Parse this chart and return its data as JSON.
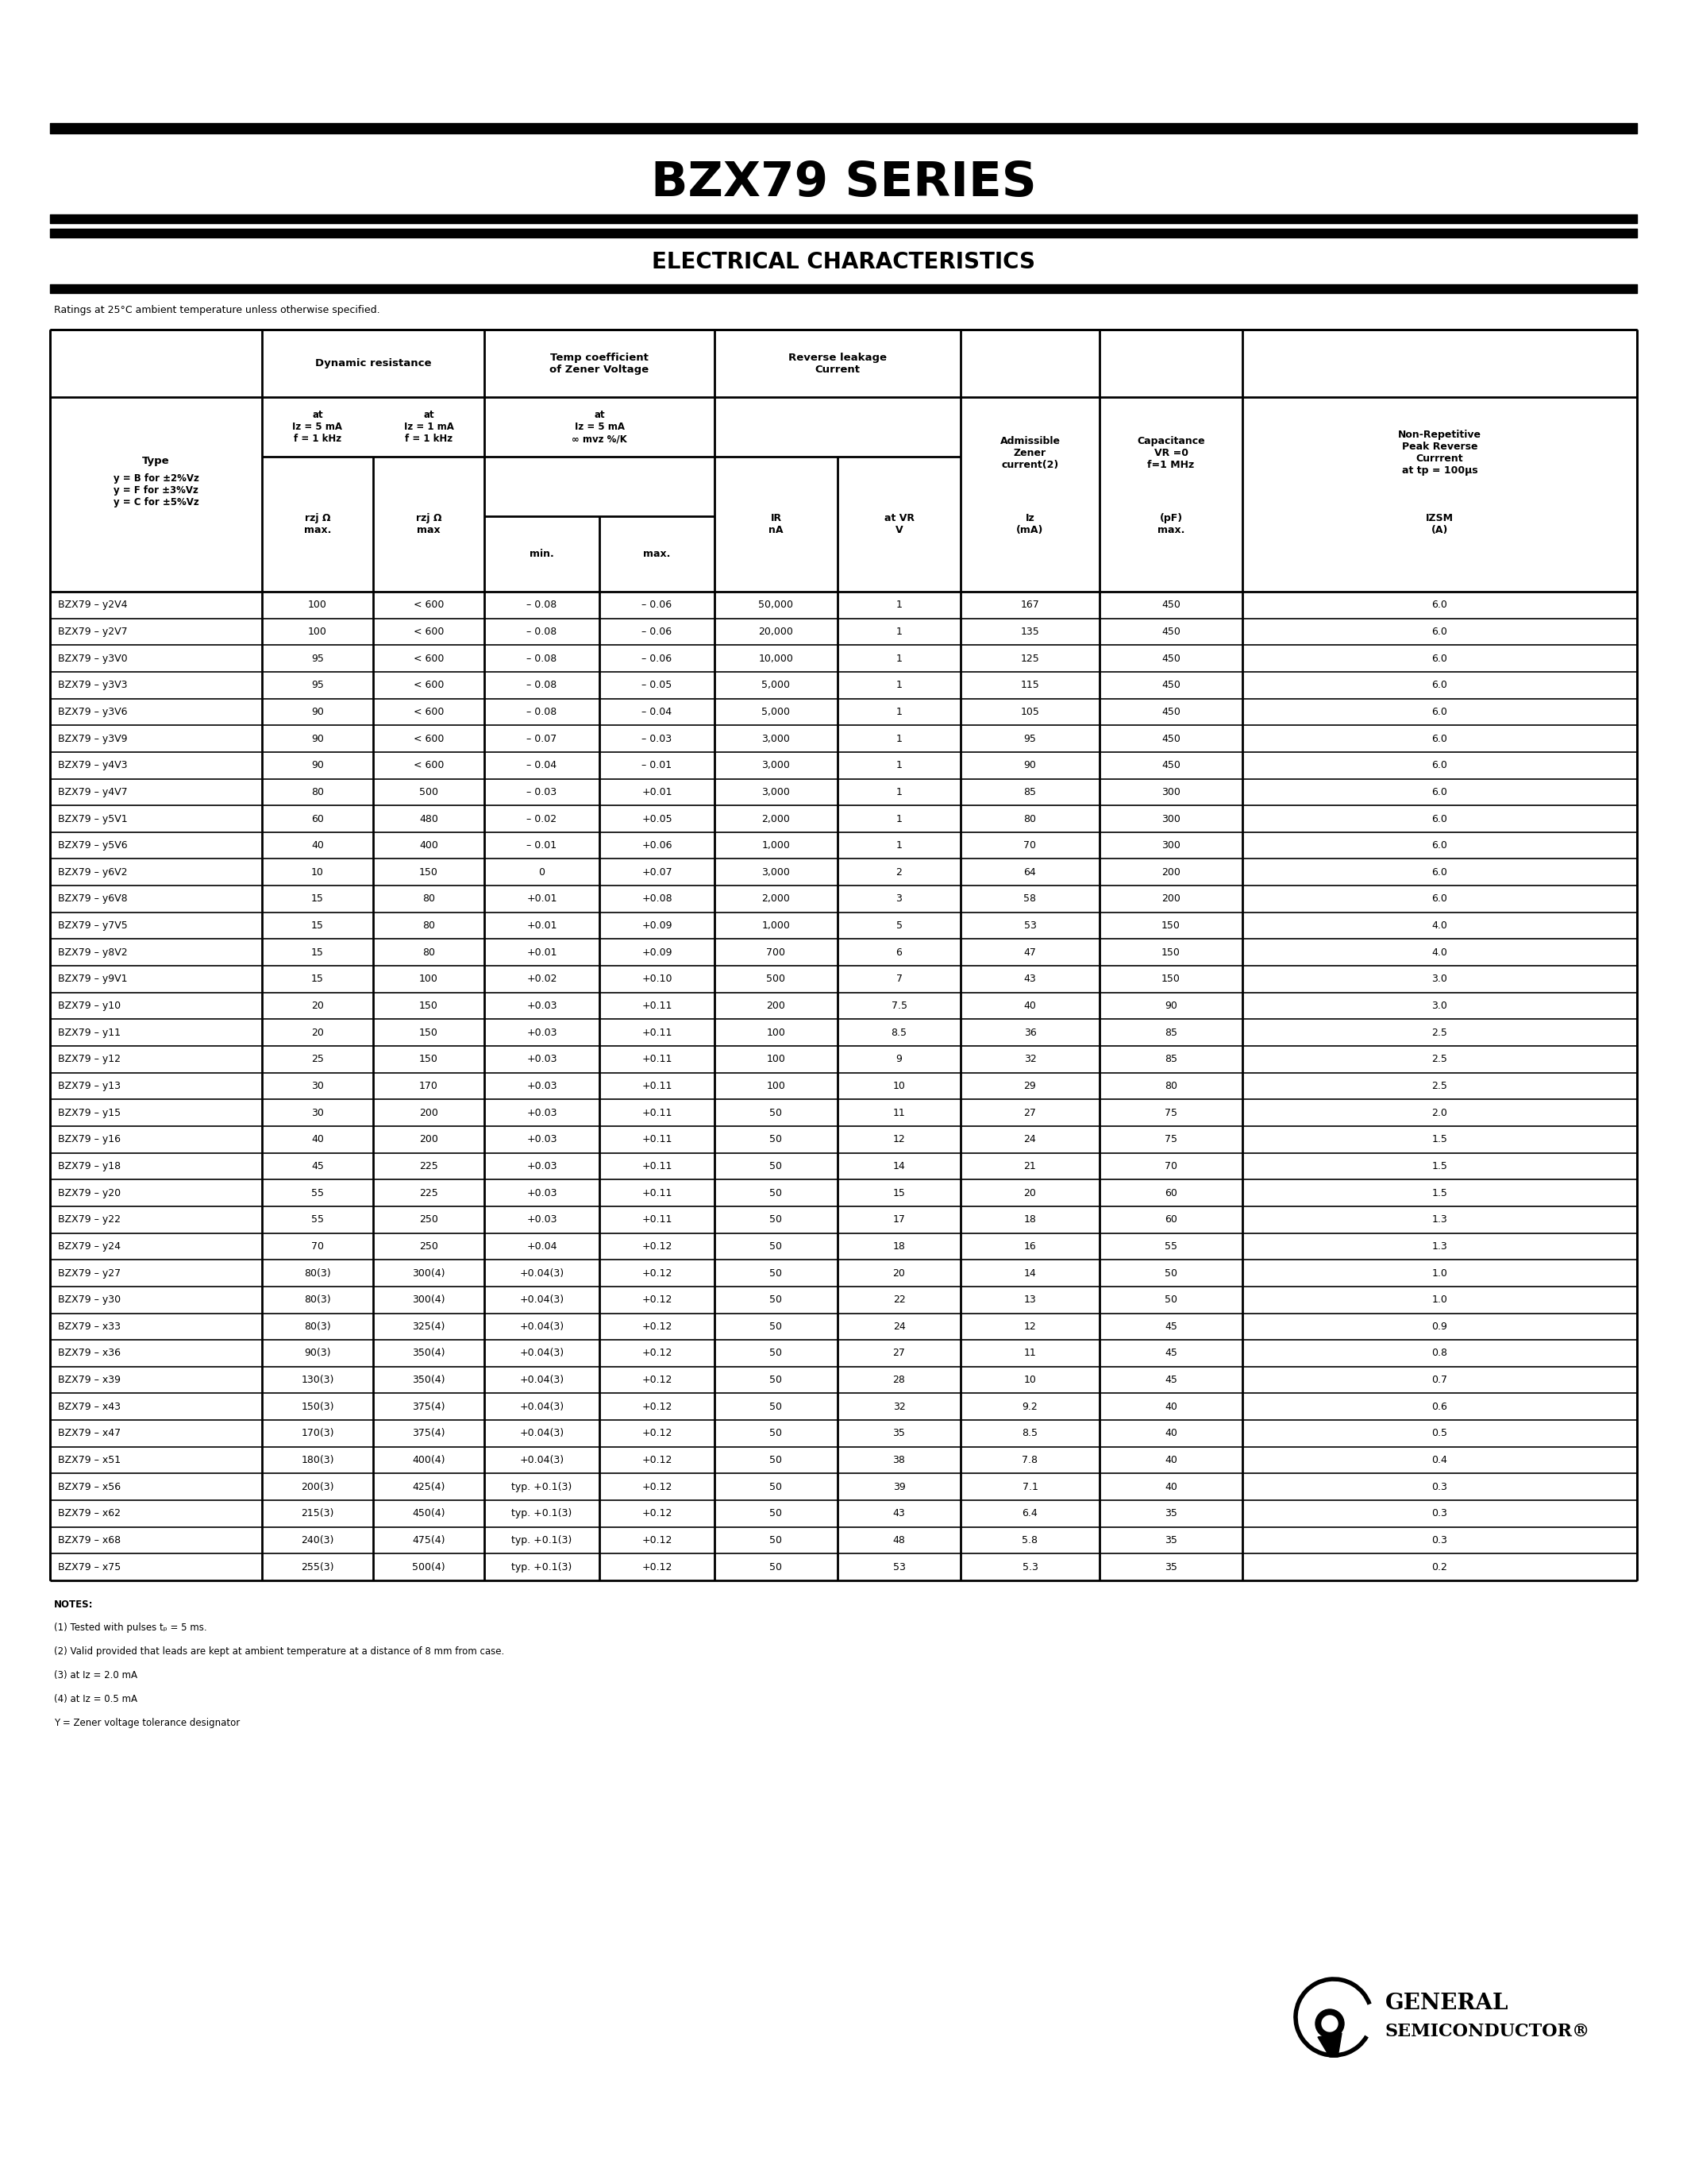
{
  "title": "BZX79 SERIES",
  "subtitle": "ELECTRICAL CHARACTERISTICS",
  "ratings_text": "Ratings at 25°C ambient temperature unless otherwise specified.",
  "table_data": [
    [
      "BZX79 – y2V4",
      "100",
      "< 600",
      "– 0.08",
      "– 0.06",
      "50,000",
      "1",
      "167",
      "450",
      "6.0"
    ],
    [
      "BZX79 – y2V7",
      "100",
      "< 600",
      "– 0.08",
      "– 0.06",
      "20,000",
      "1",
      "135",
      "450",
      "6.0"
    ],
    [
      "BZX79 – y3V0",
      "95",
      "< 600",
      "– 0.08",
      "– 0.06",
      "10,000",
      "1",
      "125",
      "450",
      "6.0"
    ],
    [
      "BZX79 – y3V3",
      "95",
      "< 600",
      "– 0.08",
      "– 0.05",
      "5,000",
      "1",
      "115",
      "450",
      "6.0"
    ],
    [
      "BZX79 – y3V6",
      "90",
      "< 600",
      "– 0.08",
      "– 0.04",
      "5,000",
      "1",
      "105",
      "450",
      "6.0"
    ],
    [
      "BZX79 – y3V9",
      "90",
      "< 600",
      "– 0.07",
      "– 0.03",
      "3,000",
      "1",
      "95",
      "450",
      "6.0"
    ],
    [
      "BZX79 – y4V3",
      "90",
      "< 600",
      "– 0.04",
      "– 0.01",
      "3,000",
      "1",
      "90",
      "450",
      "6.0"
    ],
    [
      "BZX79 – y4V7",
      "80",
      "500",
      "– 0.03",
      "+0.01",
      "3,000",
      "1",
      "85",
      "300",
      "6.0"
    ],
    [
      "BZX79 – y5V1",
      "60",
      "480",
      "– 0.02",
      "+0.05",
      "2,000",
      "1",
      "80",
      "300",
      "6.0"
    ],
    [
      "BZX79 – y5V6",
      "40",
      "400",
      "– 0.01",
      "+0.06",
      "1,000",
      "1",
      "70",
      "300",
      "6.0"
    ],
    [
      "BZX79 – y6V2",
      "10",
      "150",
      "0",
      "+0.07",
      "3,000",
      "2",
      "64",
      "200",
      "6.0"
    ],
    [
      "BZX79 – y6V8",
      "15",
      "80",
      "+0.01",
      "+0.08",
      "2,000",
      "3",
      "58",
      "200",
      "6.0"
    ],
    [
      "BZX79 – y7V5",
      "15",
      "80",
      "+0.01",
      "+0.09",
      "1,000",
      "5",
      "53",
      "150",
      "4.0"
    ],
    [
      "BZX79 – y8V2",
      "15",
      "80",
      "+0.01",
      "+0.09",
      "700",
      "6",
      "47",
      "150",
      "4.0"
    ],
    [
      "BZX79 – y9V1",
      "15",
      "100",
      "+0.02",
      "+0.10",
      "500",
      "7",
      "43",
      "150",
      "3.0"
    ],
    [
      "BZX79 – y10",
      "20",
      "150",
      "+0.03",
      "+0.11",
      "200",
      "7.5",
      "40",
      "90",
      "3.0"
    ],
    [
      "BZX79 – y11",
      "20",
      "150",
      "+0.03",
      "+0.11",
      "100",
      "8.5",
      "36",
      "85",
      "2.5"
    ],
    [
      "BZX79 – y12",
      "25",
      "150",
      "+0.03",
      "+0.11",
      "100",
      "9",
      "32",
      "85",
      "2.5"
    ],
    [
      "BZX79 – y13",
      "30",
      "170",
      "+0.03",
      "+0.11",
      "100",
      "10",
      "29",
      "80",
      "2.5"
    ],
    [
      "BZX79 – y15",
      "30",
      "200",
      "+0.03",
      "+0.11",
      "50",
      "11",
      "27",
      "75",
      "2.0"
    ],
    [
      "BZX79 – y16",
      "40",
      "200",
      "+0.03",
      "+0.11",
      "50",
      "12",
      "24",
      "75",
      "1.5"
    ],
    [
      "BZX79 – y18",
      "45",
      "225",
      "+0.03",
      "+0.11",
      "50",
      "14",
      "21",
      "70",
      "1.5"
    ],
    [
      "BZX79 – y20",
      "55",
      "225",
      "+0.03",
      "+0.11",
      "50",
      "15",
      "20",
      "60",
      "1.5"
    ],
    [
      "BZX79 – y22",
      "55",
      "250",
      "+0.03",
      "+0.11",
      "50",
      "17",
      "18",
      "60",
      "1.3"
    ],
    [
      "BZX79 – y24",
      "70",
      "250",
      "+0.04",
      "+0.12",
      "50",
      "18",
      "16",
      "55",
      "1.3"
    ],
    [
      "BZX79 – y27",
      "80(3)",
      "300(4)",
      "+0.04(3)",
      "+0.12",
      "50",
      "20",
      "14",
      "50",
      "1.0"
    ],
    [
      "BZX79 – y30",
      "80(3)",
      "300(4)",
      "+0.04(3)",
      "+0.12",
      "50",
      "22",
      "13",
      "50",
      "1.0"
    ],
    [
      "BZX79 – x33",
      "80(3)",
      "325(4)",
      "+0.04(3)",
      "+0.12",
      "50",
      "24",
      "12",
      "45",
      "0.9"
    ],
    [
      "BZX79 – x36",
      "90(3)",
      "350(4)",
      "+0.04(3)",
      "+0.12",
      "50",
      "27",
      "11",
      "45",
      "0.8"
    ],
    [
      "BZX79 – x39",
      "130(3)",
      "350(4)",
      "+0.04(3)",
      "+0.12",
      "50",
      "28",
      "10",
      "45",
      "0.7"
    ],
    [
      "BZX79 – x43",
      "150(3)",
      "375(4)",
      "+0.04(3)",
      "+0.12",
      "50",
      "32",
      "9.2",
      "40",
      "0.6"
    ],
    [
      "BZX79 – x47",
      "170(3)",
      "375(4)",
      "+0.04(3)",
      "+0.12",
      "50",
      "35",
      "8.5",
      "40",
      "0.5"
    ],
    [
      "BZX79 – x51",
      "180(3)",
      "400(4)",
      "+0.04(3)",
      "+0.12",
      "50",
      "38",
      "7.8",
      "40",
      "0.4"
    ],
    [
      "BZX79 – x56",
      "200(3)",
      "425(4)",
      "typ. +0.1(3)",
      "+0.12",
      "50",
      "39",
      "7.1",
      "40",
      "0.3"
    ],
    [
      "BZX79 – x62",
      "215(3)",
      "450(4)",
      "typ. +0.1(3)",
      "+0.12",
      "50",
      "43",
      "6.4",
      "35",
      "0.3"
    ],
    [
      "BZX79 – x68",
      "240(3)",
      "475(4)",
      "typ. +0.1(3)",
      "+0.12",
      "50",
      "48",
      "5.8",
      "35",
      "0.3"
    ],
    [
      "BZX79 – x75",
      "255(3)",
      "500(4)",
      "typ. +0.1(3)",
      "+0.12",
      "50",
      "53",
      "5.3",
      "35",
      "0.2"
    ]
  ],
  "notes": [
    "NOTES:",
    "(1) Tested with pulses tₚ = 5 ms.",
    "(2) Valid provided that leads are kept at ambient temperature at a distance of 8 mm from case.",
    "(3) at Iz = 2.0 mA",
    "(4) at Iz = 0.5 mA",
    "Y = Zener voltage tolerance designator"
  ]
}
